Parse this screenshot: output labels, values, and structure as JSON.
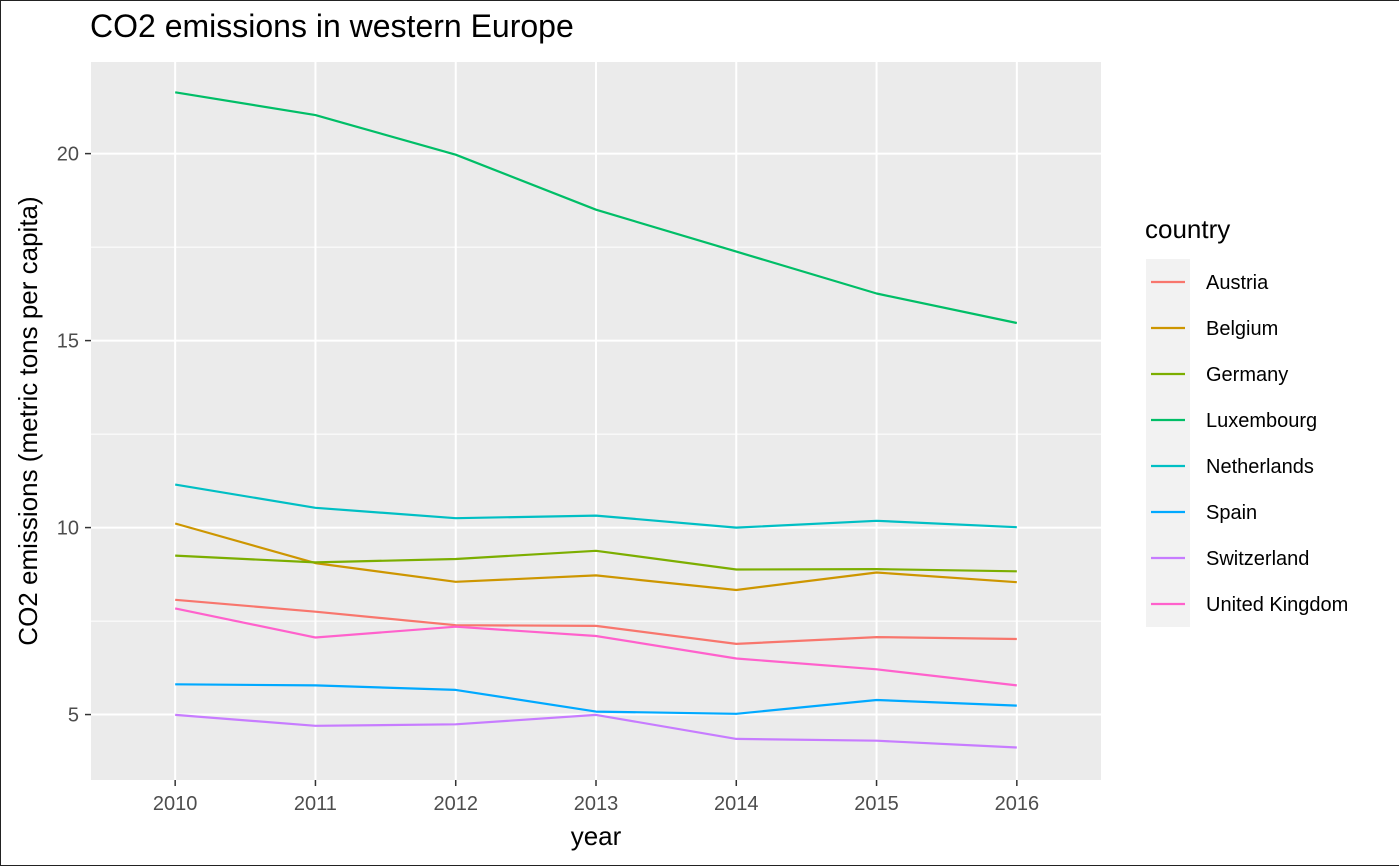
{
  "chart_data": {
    "type": "line",
    "title": "CO2 emissions in western Europe",
    "xlabel": "year",
    "ylabel": "CO2 emissions (metric tons per capita)",
    "x": [
      2010,
      2011,
      2012,
      2013,
      2014,
      2015,
      2016
    ],
    "xlim": [
      2009.4,
      2016.6
    ],
    "ylim": [
      3.25,
      22.45
    ],
    "yticks": [
      5,
      10,
      15,
      20
    ],
    "grid": true,
    "legend_title": "country",
    "legend_position": "right",
    "series": [
      {
        "name": "Austria",
        "color": "#F8766D",
        "values": [
          8.07,
          7.75,
          7.39,
          7.37,
          6.89,
          7.07,
          7.02
        ]
      },
      {
        "name": "Belgium",
        "color": "#CD9600",
        "values": [
          10.11,
          9.05,
          8.55,
          8.72,
          8.33,
          8.8,
          8.54
        ]
      },
      {
        "name": "Germany",
        "color": "#7CAE00",
        "values": [
          9.25,
          9.07,
          9.16,
          9.38,
          8.88,
          8.89,
          8.83
        ]
      },
      {
        "name": "Luxembourg",
        "color": "#00BE67",
        "values": [
          21.64,
          21.03,
          19.97,
          18.5,
          17.38,
          16.26,
          15.47
        ]
      },
      {
        "name": "Netherlands",
        "color": "#00BFC4",
        "values": [
          11.15,
          10.53,
          10.25,
          10.32,
          10.0,
          10.18,
          10.01
        ]
      },
      {
        "name": "Spain",
        "color": "#00A9FF",
        "values": [
          5.81,
          5.78,
          5.66,
          5.08,
          5.02,
          5.39,
          5.24
        ]
      },
      {
        "name": "Switzerland",
        "color": "#C77CFF",
        "values": [
          4.99,
          4.7,
          4.74,
          4.99,
          4.35,
          4.3,
          4.12
        ]
      },
      {
        "name": "United Kingdom",
        "color": "#FF61CC",
        "values": [
          7.84,
          7.06,
          7.35,
          7.1,
          6.5,
          6.21,
          5.78
        ]
      }
    ]
  }
}
